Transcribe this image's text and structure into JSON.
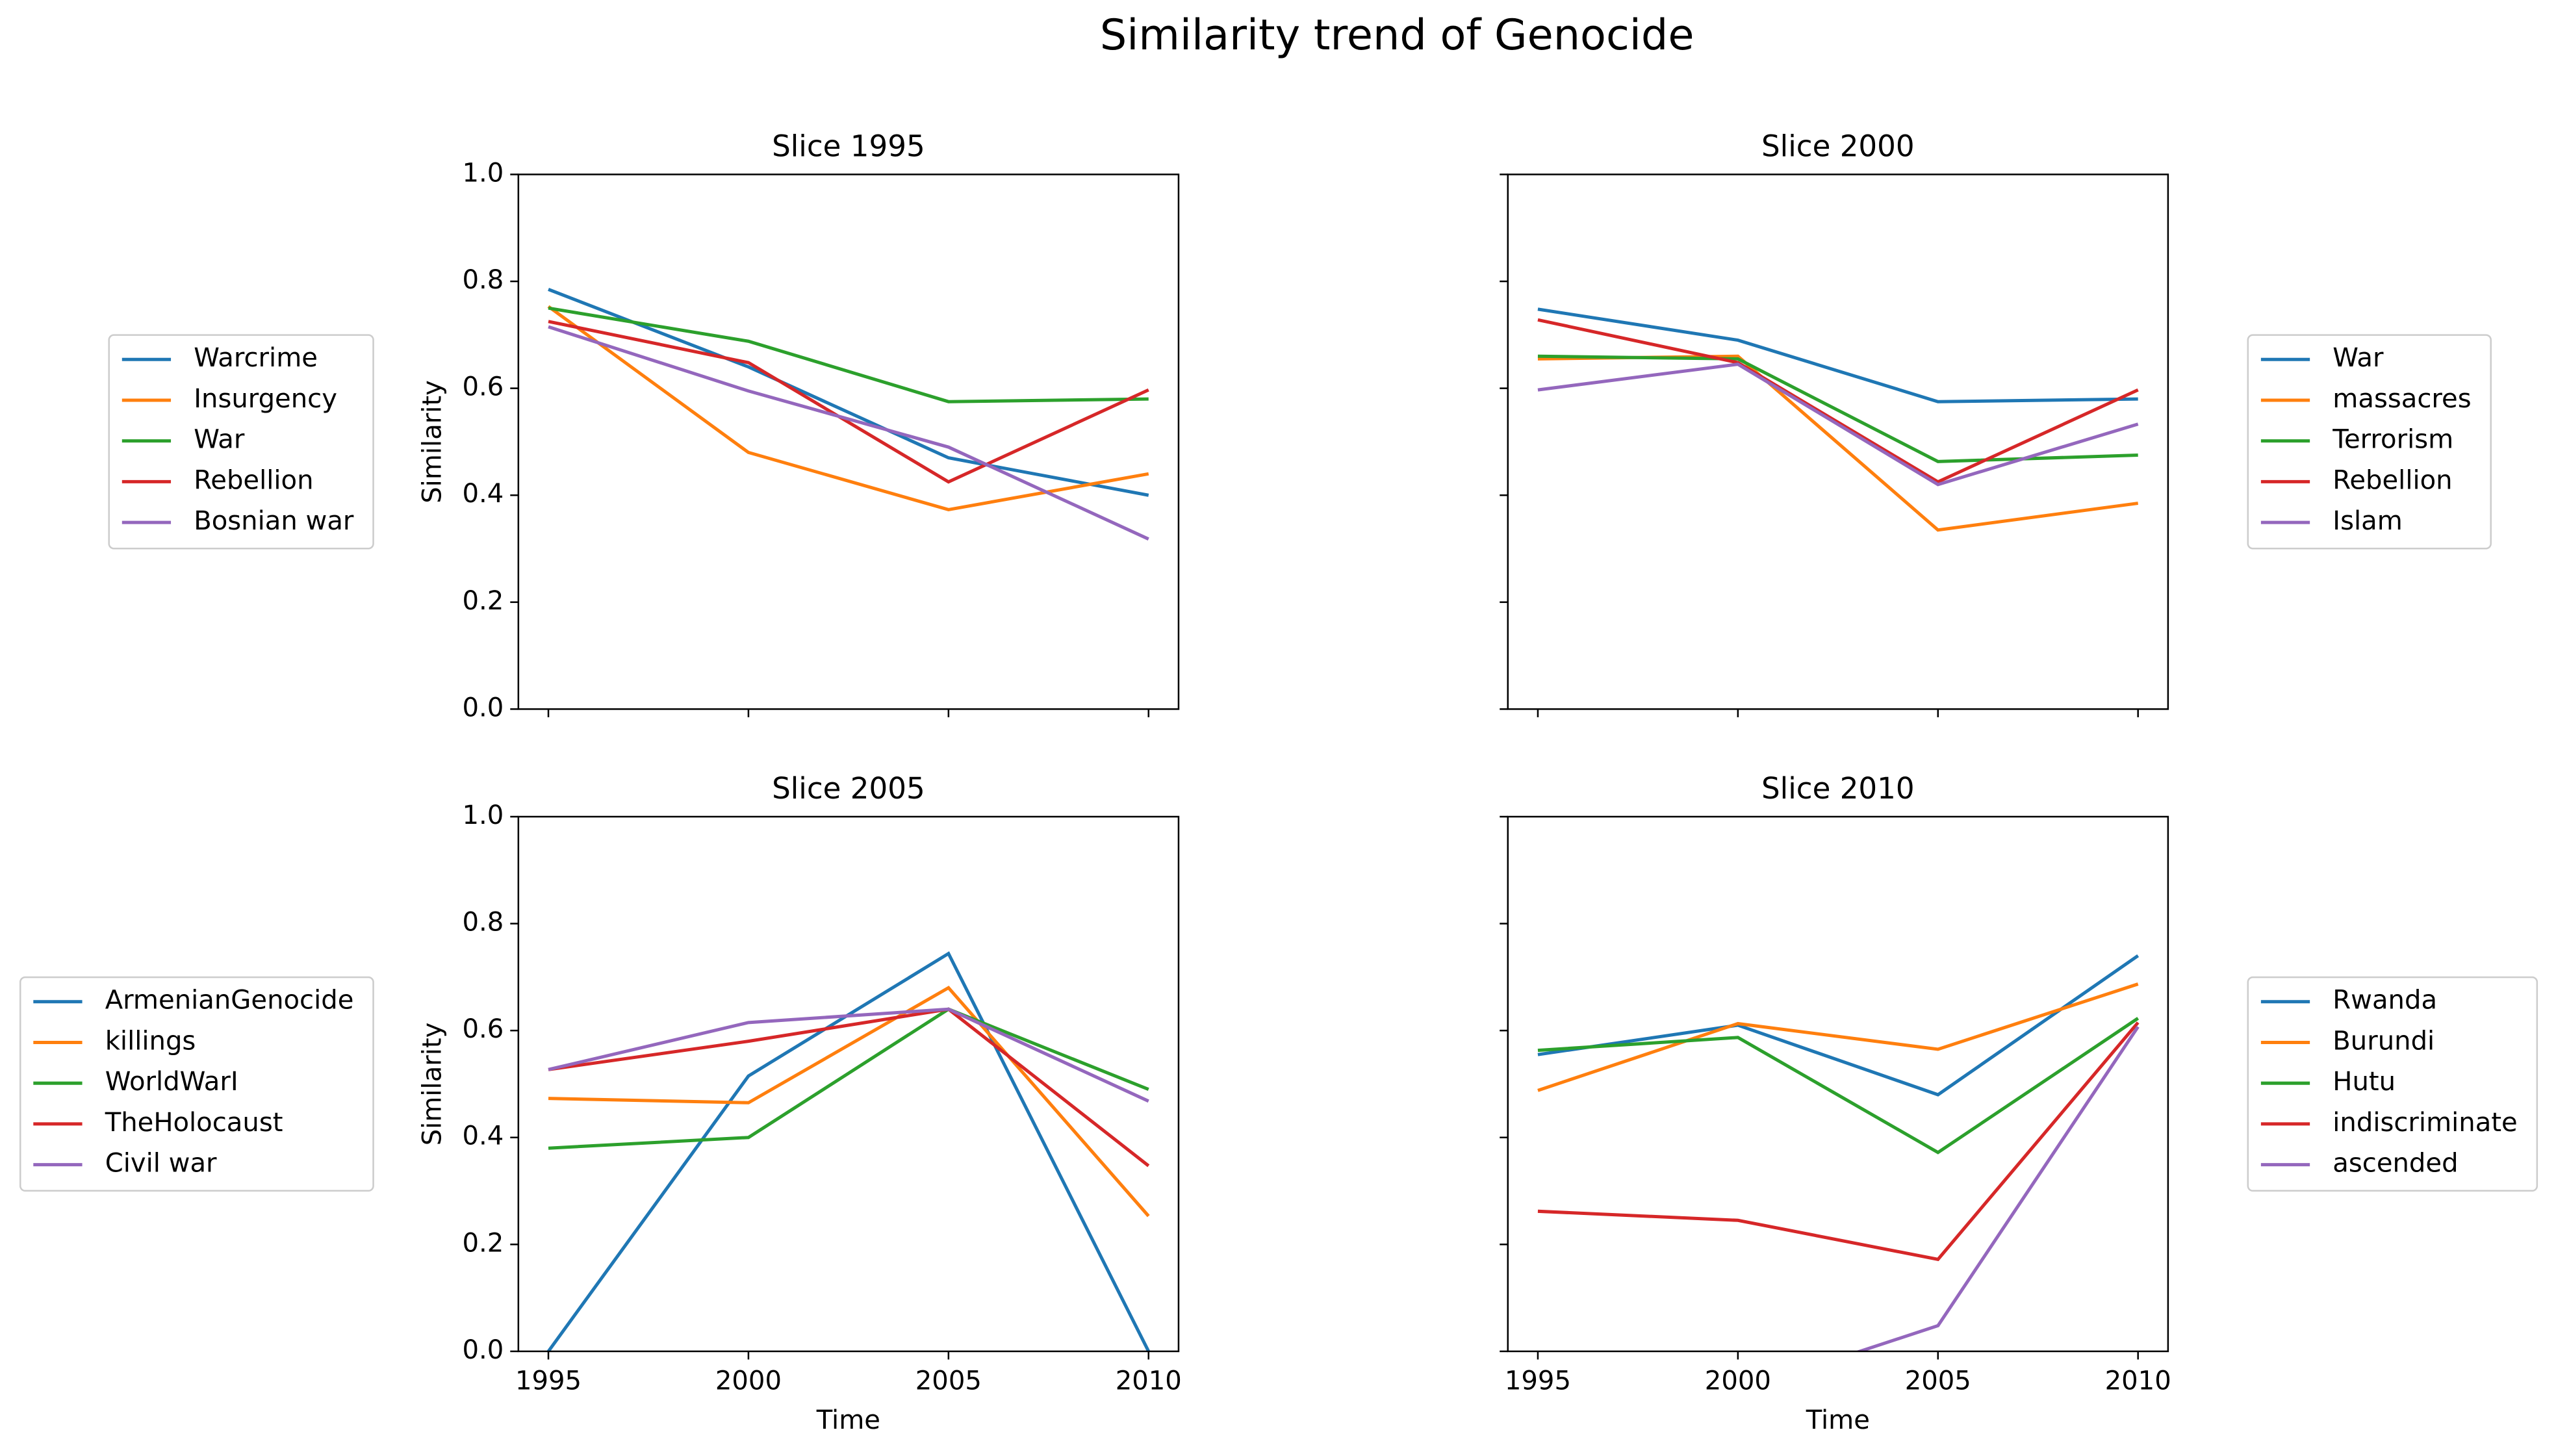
{
  "title": "Similarity trend of Genocide",
  "chart_data": [
    {
      "type": "line",
      "title": "Slice 1995",
      "ylabel": "Similarity",
      "xlabel": "Time",
      "x": [
        1995,
        2000,
        2005,
        2010
      ],
      "xlim": [
        1994.25,
        2010.75
      ],
      "xticks": [
        1995,
        2000,
        2005,
        2010
      ],
      "ylim": [
        0,
        1
      ],
      "yticks": [
        0.0,
        0.2,
        0.4,
        0.6,
        0.8,
        1.0
      ],
      "legend": "outside left",
      "series": [
        {
          "name": "Warcrime",
          "color": "#1f77b4",
          "values": [
            0.785,
            0.64,
            0.47,
            0.4
          ]
        },
        {
          "name": "Insurgency",
          "color": "#ff7f0e",
          "values": [
            0.753,
            0.48,
            0.373,
            0.44
          ]
        },
        {
          "name": "War",
          "color": "#2ca02c",
          "values": [
            0.75,
            0.688,
            0.575,
            0.58
          ]
        },
        {
          "name": "Rebellion",
          "color": "#d62728",
          "values": [
            0.725,
            0.648,
            0.425,
            0.597
          ]
        },
        {
          "name": "Bosnian war",
          "color": "#9467bd",
          "values": [
            0.715,
            0.595,
            0.49,
            0.318
          ]
        }
      ]
    },
    {
      "type": "line",
      "title": "Slice 2000",
      "ylabel": "Similarity",
      "xlabel": "Time",
      "x": [
        1995,
        2000,
        2005,
        2010
      ],
      "xlim": [
        1994.25,
        2010.75
      ],
      "xticks": [
        1995,
        2000,
        2005,
        2010
      ],
      "ylim": [
        0,
        1
      ],
      "yticks": [
        0.0,
        0.2,
        0.4,
        0.6,
        0.8,
        1.0
      ],
      "legend": "outside right",
      "series": [
        {
          "name": "War",
          "color": "#1f77b4",
          "values": [
            0.748,
            0.69,
            0.575,
            0.58
          ]
        },
        {
          "name": "massacres",
          "color": "#ff7f0e",
          "values": [
            0.655,
            0.66,
            0.335,
            0.385
          ]
        },
        {
          "name": "Terrorism",
          "color": "#2ca02c",
          "values": [
            0.66,
            0.655,
            0.463,
            0.475
          ]
        },
        {
          "name": "Rebellion",
          "color": "#d62728",
          "values": [
            0.728,
            0.648,
            0.425,
            0.597
          ]
        },
        {
          "name": "Islam",
          "color": "#9467bd",
          "values": [
            0.597,
            0.645,
            0.42,
            0.533
          ]
        }
      ]
    },
    {
      "type": "line",
      "title": "Slice 2005",
      "ylabel": "Similarity",
      "xlabel": "Time",
      "x": [
        1995,
        2000,
        2005,
        2010
      ],
      "xlim": [
        1994.25,
        2010.75
      ],
      "xticks": [
        1995,
        2000,
        2005,
        2010
      ],
      "ylim": [
        0,
        1
      ],
      "yticks": [
        0.0,
        0.2,
        0.4,
        0.6,
        0.8,
        1.0
      ],
      "legend": "outside left",
      "series": [
        {
          "name": "ArmenianGenocide",
          "color": "#1f77b4",
          "values": [
            0,
            0.515,
            0.744,
            0
          ]
        },
        {
          "name": "killings",
          "color": "#ff7f0e",
          "values": [
            0.473,
            0.465,
            0.68,
            0.253
          ]
        },
        {
          "name": "WorldWarI",
          "color": "#2ca02c",
          "values": [
            0.38,
            0.4,
            0.64,
            0.49
          ]
        },
        {
          "name": "TheHolocaust",
          "color": "#d62728",
          "values": [
            0.527,
            0.58,
            0.64,
            0.347
          ]
        },
        {
          "name": "Civil war",
          "color": "#9467bd",
          "values": [
            0.527,
            0.615,
            0.64,
            0.468
          ]
        }
      ]
    },
    {
      "type": "line",
      "title": "Slice 2010",
      "ylabel": "Similarity",
      "xlabel": "Time",
      "x": [
        1995,
        2000,
        2005,
        2010
      ],
      "xlim": [
        1994.25,
        2010.75
      ],
      "xticks": [
        1995,
        2000,
        2005,
        2010
      ],
      "ylim": [
        0,
        1
      ],
      "yticks": [
        0.0,
        0.2,
        0.4,
        0.6,
        0.8,
        1.0
      ],
      "legend": "outside right",
      "series": [
        {
          "name": "Rwanda",
          "color": "#1f77b4",
          "values": [
            0.555,
            0.61,
            0.48,
            0.74
          ]
        },
        {
          "name": "Burundi",
          "color": "#ff7f0e",
          "values": [
            0.488,
            0.613,
            0.565,
            0.687
          ]
        },
        {
          "name": "Hutu",
          "color": "#2ca02c",
          "values": [
            0.563,
            0.587,
            0.372,
            0.623
          ]
        },
        {
          "name": "indiscriminate",
          "color": "#d62728",
          "values": [
            0.262,
            0.245,
            0.172,
            0.615
          ]
        },
        {
          "name": "ascended",
          "color": "#9467bd",
          "values": [
            -0.1,
            -0.075,
            0.048,
            0.607
          ]
        }
      ]
    }
  ]
}
